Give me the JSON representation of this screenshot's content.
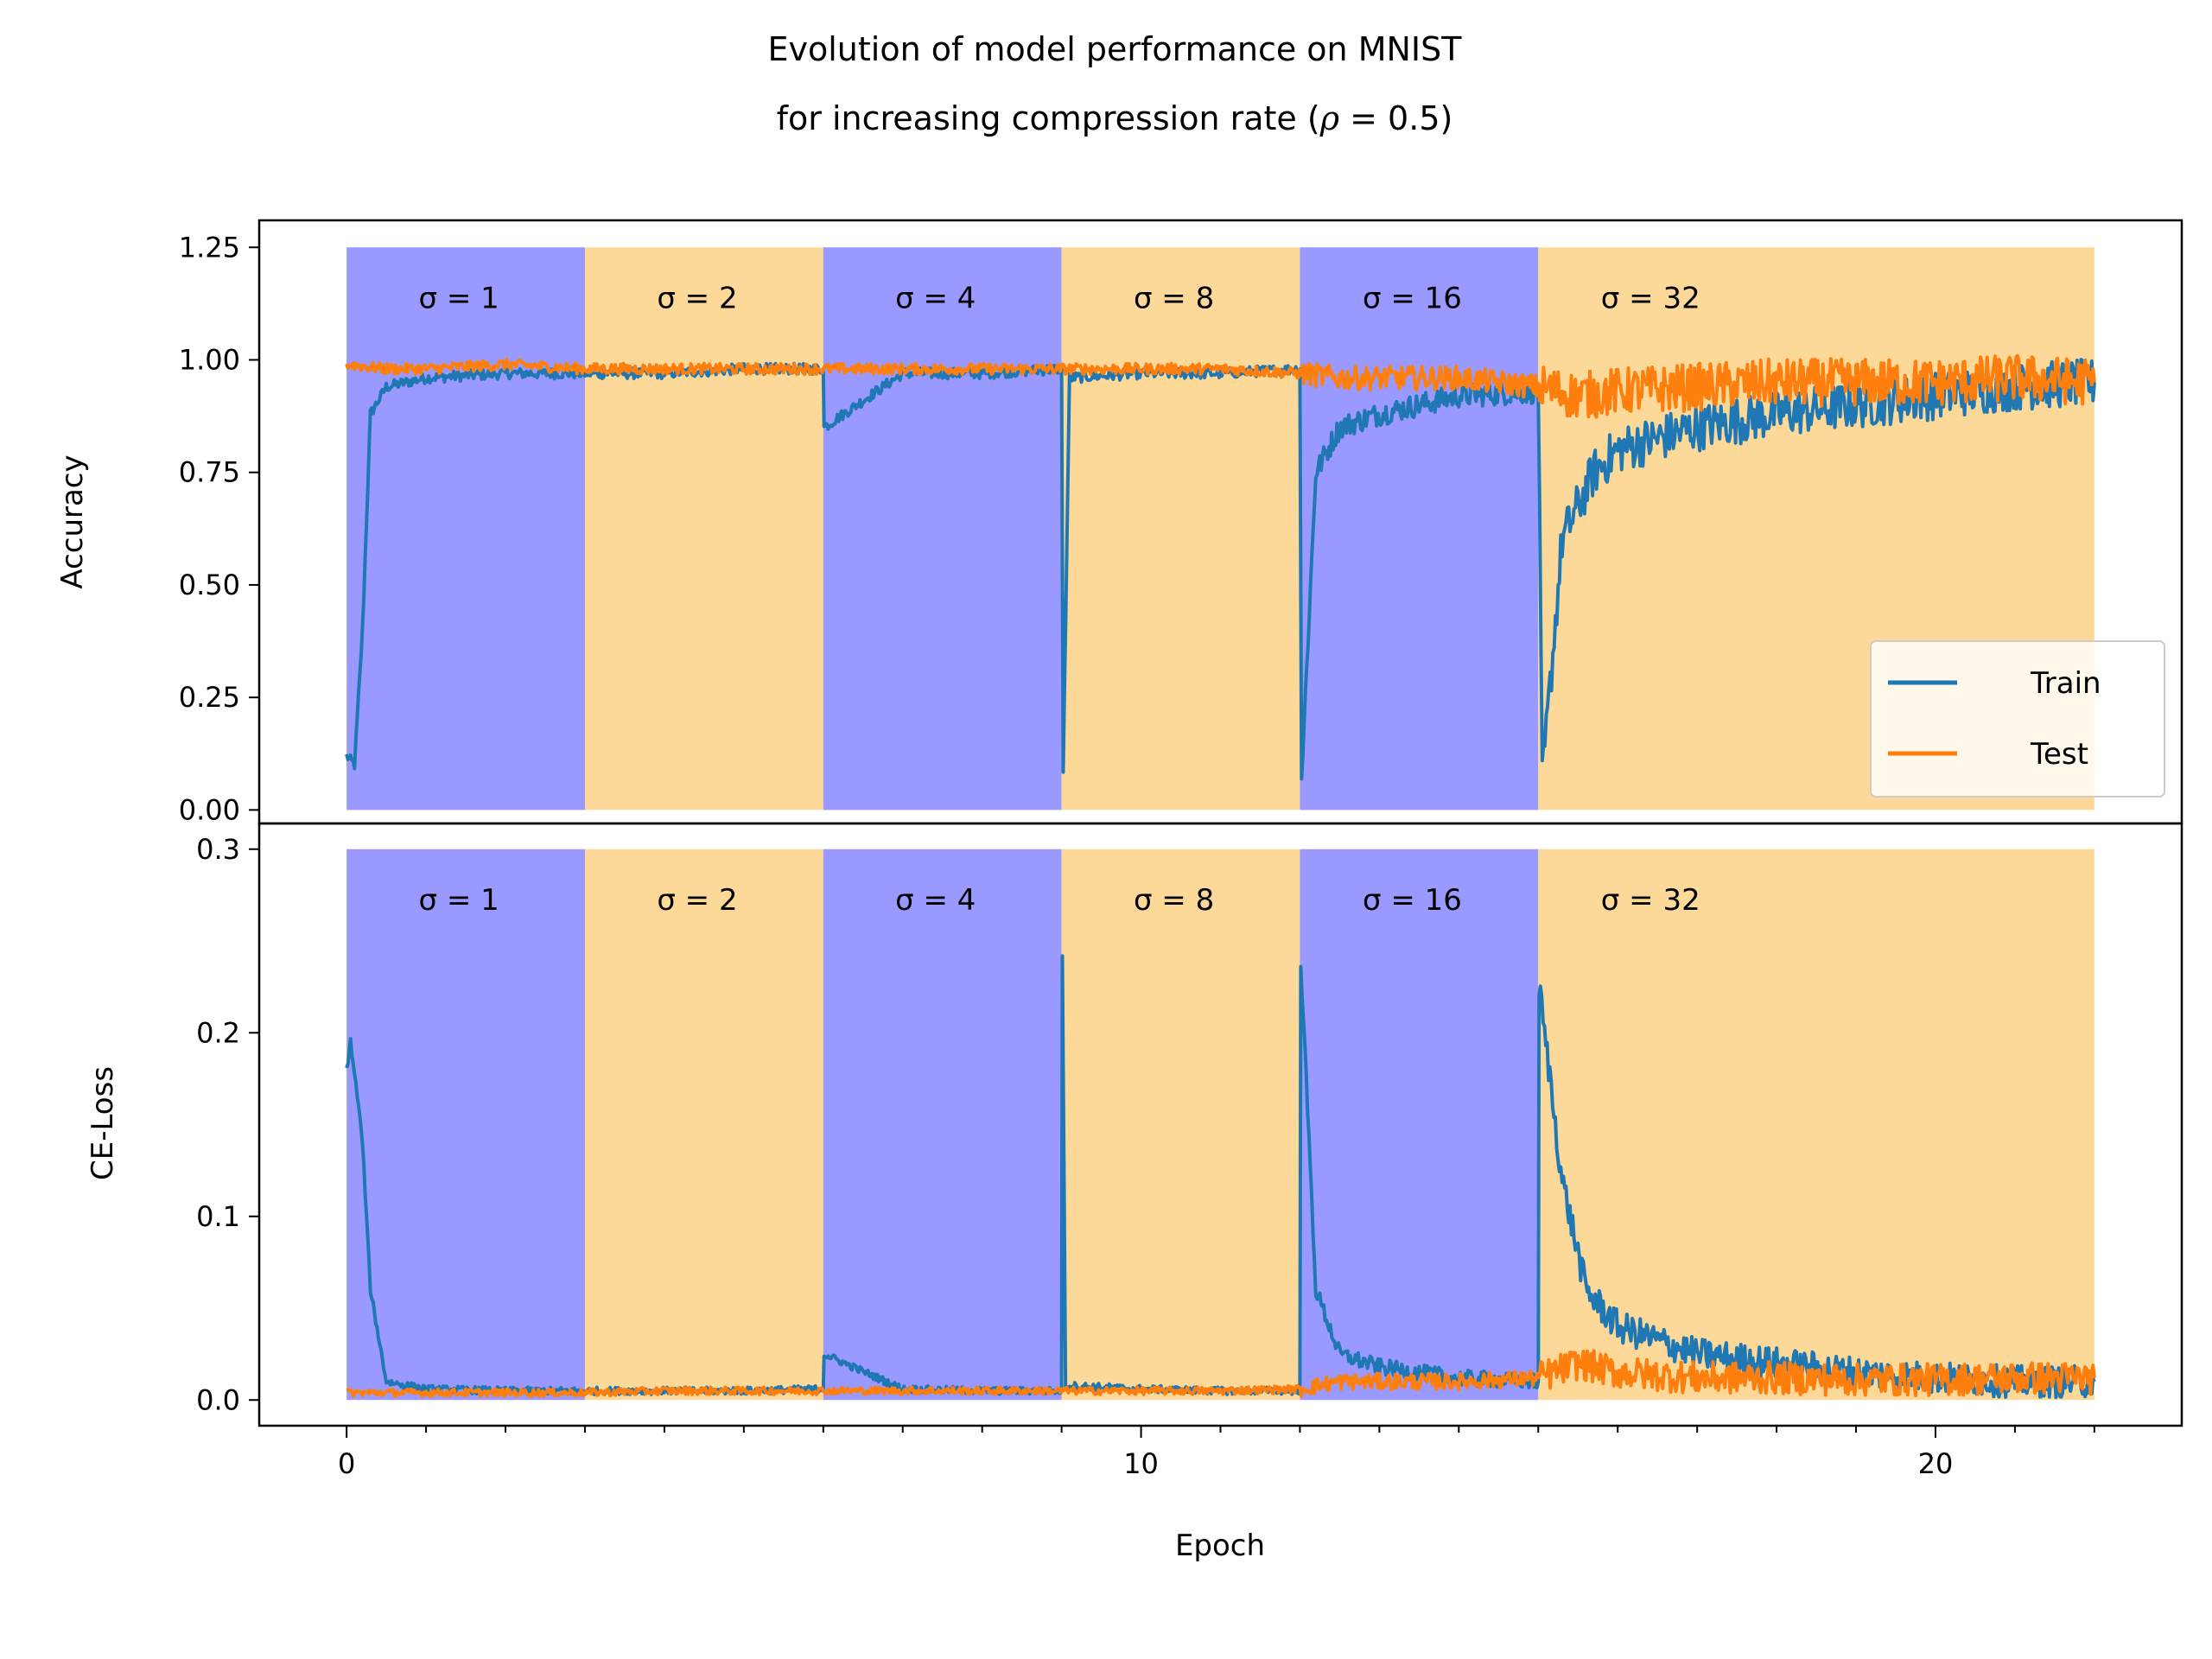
{
  "title_line1": "Evolution of model performance on MNIST",
  "title_line2_prefix": "for increasing compression rate (",
  "title_line2_symbol": "ρ",
  "title_line2_suffix": " = 0.5)",
  "colors": {
    "band_a": "#9999ff",
    "band_b": "#fcd999",
    "train": "#1f77b4",
    "test": "#ff7f0e"
  },
  "chart_data": [
    {
      "type": "line",
      "panel": "accuracy",
      "ylabel": "Accuracy",
      "xlabel": "",
      "xlim": [
        -1.1,
        23.1
      ],
      "ylim": [
        -0.03,
        1.31
      ],
      "yticks": [
        0.0,
        0.25,
        0.5,
        0.75,
        1.0,
        1.25
      ],
      "ytick_labels": [
        "0.00",
        "0.25",
        "0.50",
        "0.75",
        "1.00",
        "1.25"
      ],
      "bands": [
        {
          "x0": 0,
          "x1": 3,
          "label": "σ = 1",
          "color": "band_a"
        },
        {
          "x0": 3,
          "x1": 6,
          "label": "σ = 2",
          "color": "band_b"
        },
        {
          "x0": 6,
          "x1": 9,
          "label": "σ = 4",
          "color": "band_a"
        },
        {
          "x0": 9,
          "x1": 12,
          "label": "σ = 8",
          "color": "band_b"
        },
        {
          "x0": 12,
          "x1": 15,
          "label": "σ = 16",
          "color": "band_a"
        },
        {
          "x0": 15,
          "x1": 22,
          "label": "σ = 32",
          "color": "band_b"
        }
      ],
      "band_top": 1.25,
      "legend": {
        "position": "lower right",
        "entries": [
          "Train",
          "Test"
        ]
      },
      "series": [
        {
          "name": "Train",
          "color": "train",
          "x": [
            0,
            0.1,
            0.2,
            0.3,
            0.5,
            1,
            2,
            3,
            4,
            5,
            6,
            6.01,
            7,
            8,
            9,
            9.02,
            9.1,
            10,
            11,
            12,
            12.02,
            12.2,
            12.5,
            13,
            14,
            15,
            15.05,
            15.3,
            15.7,
            16,
            17,
            18,
            19,
            20,
            21,
            22
          ],
          "y": [
            0.12,
            0.1,
            0.4,
            0.88,
            0.94,
            0.96,
            0.97,
            0.97,
            0.97,
            0.98,
            0.98,
            0.85,
            0.97,
            0.97,
            0.98,
            0.08,
            0.96,
            0.97,
            0.97,
            0.98,
            0.07,
            0.75,
            0.85,
            0.88,
            0.92,
            0.93,
            0.06,
            0.6,
            0.75,
            0.8,
            0.85,
            0.88,
            0.9,
            0.92,
            0.94,
            0.95
          ]
        },
        {
          "name": "Test",
          "color": "test",
          "x": [
            0,
            0.5,
            1,
            2,
            3,
            4,
            5,
            6,
            7,
            8,
            9,
            10,
            11,
            12,
            12.5,
            13,
            14,
            15,
            15.5,
            16,
            17,
            18,
            19,
            20,
            21,
            22
          ],
          "y": [
            0.99,
            0.98,
            0.98,
            0.99,
            0.98,
            0.98,
            0.98,
            0.98,
            0.98,
            0.98,
            0.98,
            0.98,
            0.98,
            0.97,
            0.96,
            0.96,
            0.96,
            0.94,
            0.92,
            0.93,
            0.94,
            0.95,
            0.95,
            0.95,
            0.96,
            0.95
          ]
        }
      ]
    },
    {
      "type": "line",
      "panel": "loss",
      "ylabel": "CE-Loss",
      "xlabel": "Epoch",
      "xlim": [
        -1.1,
        23.1
      ],
      "ylim": [
        -0.014,
        0.314
      ],
      "xticks": [
        0,
        10,
        20
      ],
      "xtick_labels": [
        "0",
        "10",
        "20"
      ],
      "yticks": [
        0.0,
        0.1,
        0.2,
        0.3
      ],
      "ytick_labels": [
        "0.0",
        "0.1",
        "0.2",
        "0.3"
      ],
      "bands": [
        {
          "x0": 0,
          "x1": 3,
          "label": "σ = 1",
          "color": "band_a"
        },
        {
          "x0": 3,
          "x1": 6,
          "label": "σ = 2",
          "color": "band_b"
        },
        {
          "x0": 6,
          "x1": 9,
          "label": "σ = 4",
          "color": "band_a"
        },
        {
          "x0": 9,
          "x1": 12,
          "label": "σ = 8",
          "color": "band_b"
        },
        {
          "x0": 12,
          "x1": 15,
          "label": "σ = 16",
          "color": "band_a"
        },
        {
          "x0": 15,
          "x1": 22,
          "label": "σ = 32",
          "color": "band_b"
        }
      ],
      "band_top": 0.3,
      "series": [
        {
          "name": "Train",
          "color": "train",
          "x": [
            0,
            0.05,
            0.15,
            0.2,
            0.3,
            0.5,
            1,
            2,
            3,
            4,
            5,
            6,
            6.01,
            7,
            8,
            9,
            9.01,
            9.05,
            10,
            11,
            12,
            12.01,
            12.2,
            12.5,
            13,
            14,
            15,
            15.01,
            15.3,
            15.6,
            16,
            17,
            18,
            19,
            20,
            21,
            22
          ],
          "y": [
            0.18,
            0.195,
            0.16,
            0.14,
            0.06,
            0.01,
            0.006,
            0.005,
            0.005,
            0.005,
            0.005,
            0.006,
            0.025,
            0.006,
            0.005,
            0.005,
            0.24,
            0.008,
            0.006,
            0.005,
            0.005,
            0.24,
            0.06,
            0.025,
            0.018,
            0.012,
            0.01,
            0.225,
            0.12,
            0.06,
            0.04,
            0.025,
            0.02,
            0.015,
            0.012,
            0.01,
            0.01
          ]
        },
        {
          "name": "Test",
          "color": "test",
          "x": [
            0,
            1,
            2,
            3,
            4,
            5,
            6,
            7,
            8,
            9,
            10,
            11,
            12,
            12.5,
            13,
            14,
            15,
            15.5,
            16,
            17,
            18,
            19,
            20,
            21,
            22
          ],
          "y": [
            0.004,
            0.004,
            0.004,
            0.004,
            0.005,
            0.005,
            0.005,
            0.005,
            0.005,
            0.005,
            0.005,
            0.005,
            0.006,
            0.01,
            0.01,
            0.01,
            0.012,
            0.02,
            0.015,
            0.012,
            0.012,
            0.011,
            0.011,
            0.012,
            0.012
          ]
        }
      ]
    }
  ]
}
